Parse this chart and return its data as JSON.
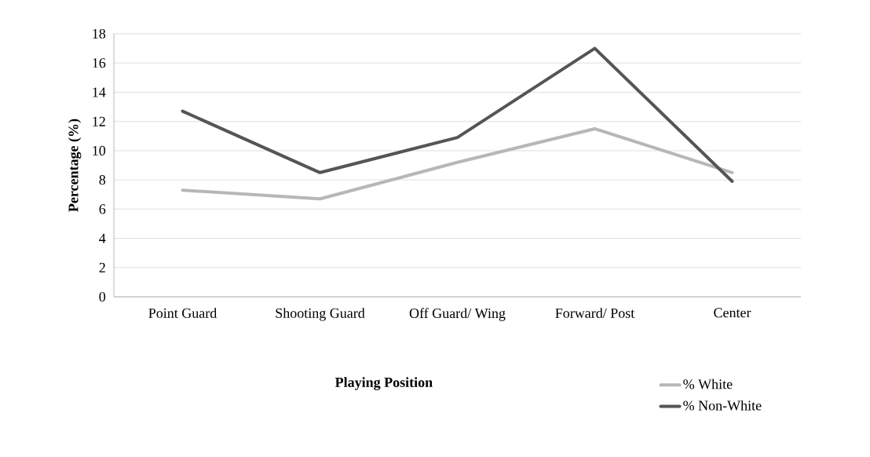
{
  "chart_data": {
    "type": "line",
    "xlabel": "Playing Position",
    "ylabel": "Percentage (%)",
    "categories": [
      "Point Guard",
      "Shooting Guard",
      "Off Guard/ Wing",
      "Forward/ Post",
      "Center"
    ],
    "series": [
      {
        "name": "% White",
        "color": "#b7b7b7",
        "values": [
          7.3,
          6.7,
          9.2,
          11.5,
          8.5
        ]
      },
      {
        "name": "% Non-White",
        "color": "#555555",
        "values": [
          12.7,
          8.5,
          10.9,
          17.0,
          7.9
        ]
      }
    ],
    "ylim": [
      0,
      18
    ],
    "yticks": [
      0,
      2,
      4,
      6,
      8,
      10,
      12,
      14,
      16,
      18
    ],
    "grid": "y",
    "legend": "bottom right",
    "marker": "none",
    "line_style": "solid"
  }
}
